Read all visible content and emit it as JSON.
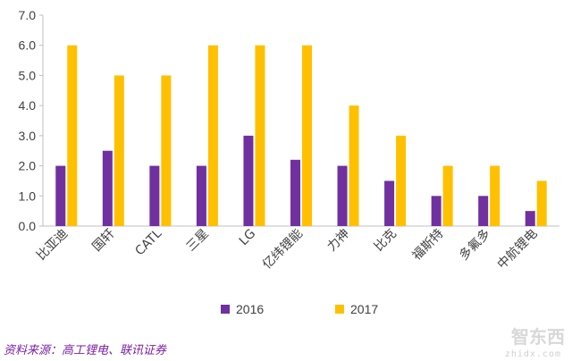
{
  "chart_data": {
    "type": "bar",
    "title": "",
    "xlabel": "",
    "ylabel": "",
    "ylim": [
      0,
      7
    ],
    "yticks": [
      "0.0",
      "1.0",
      "2.0",
      "3.0",
      "4.0",
      "5.0",
      "6.0",
      "7.0"
    ],
    "grid": false,
    "legend_position": "bottom",
    "categories": [
      "比亚迪",
      "国轩",
      "CATL",
      "三星",
      "LG",
      "亿纬锂能",
      "力神",
      "比克",
      "福斯特",
      "多氟多",
      "中航锂电"
    ],
    "series": [
      {
        "name": "2016",
        "color": "#7030a0",
        "values": [
          2,
          2.5,
          2,
          2,
          3,
          2.2,
          2,
          1.5,
          1,
          1,
          0.5
        ]
      },
      {
        "name": "2017",
        "color": "#ffc000",
        "values": [
          6,
          5,
          5,
          6,
          6,
          6,
          4,
          3,
          2,
          2,
          1.5
        ]
      }
    ]
  },
  "source": "资料来源：高工锂电、联讯证券",
  "watermark": {
    "brand": "智东西",
    "url": "zhidx.com"
  },
  "colors": {
    "axis": "#bfbfbf",
    "text": "#404040",
    "source": "#7a1fa2"
  }
}
